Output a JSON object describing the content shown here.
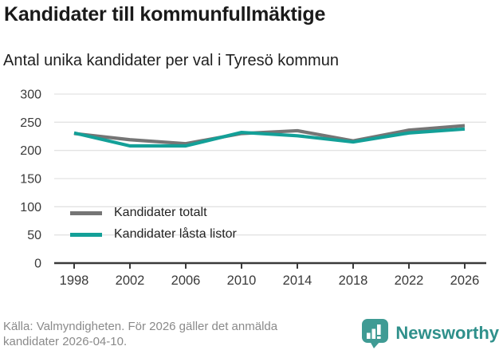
{
  "header": {
    "title": "Kandidater till kommunfullmäktige",
    "subtitle": "Antal unika kandidater per val i Tyresö kommun"
  },
  "chart_data": {
    "type": "line",
    "title": "Kandidater till kommunfullmäktige",
    "subtitle": "Antal unika kandidater per val i Tyresö kommun",
    "x": [
      1998,
      2002,
      2006,
      2010,
      2014,
      2018,
      2022,
      2026
    ],
    "xtick_labels": [
      "1998",
      "2002",
      "2006",
      "2010",
      "2014",
      "2018",
      "2022",
      "2026"
    ],
    "series": [
      {
        "name": "Kandidater totalt",
        "color": "#757575",
        "values": [
          230,
          219,
          212,
          230,
          235,
          217,
          236,
          244
        ]
      },
      {
        "name": "Kandidater låsta listor",
        "color": "#13a098",
        "values": [
          231,
          208,
          208,
          232,
          226,
          215,
          231,
          238
        ]
      }
    ],
    "ylim": [
      0,
      300
    ],
    "yticks": [
      0,
      50,
      100,
      150,
      200,
      250,
      300
    ],
    "xlabel": "",
    "ylabel": "",
    "grid": true,
    "legend_position": "inside-lower-left",
    "gridline_color": "#e3e3e3",
    "axis_color": "#3a3a3a",
    "tick_label_color": "#3a3a3a"
  },
  "footer": {
    "source_line1": "Källa: Valmyndigheten. För 2026 gäller det anmälda",
    "source_line2": "kandidater 2026-04-10.",
    "brand": "Newsworthy",
    "brand_color": "#2f908b",
    "brand_badge_color": "#3f9b94"
  }
}
